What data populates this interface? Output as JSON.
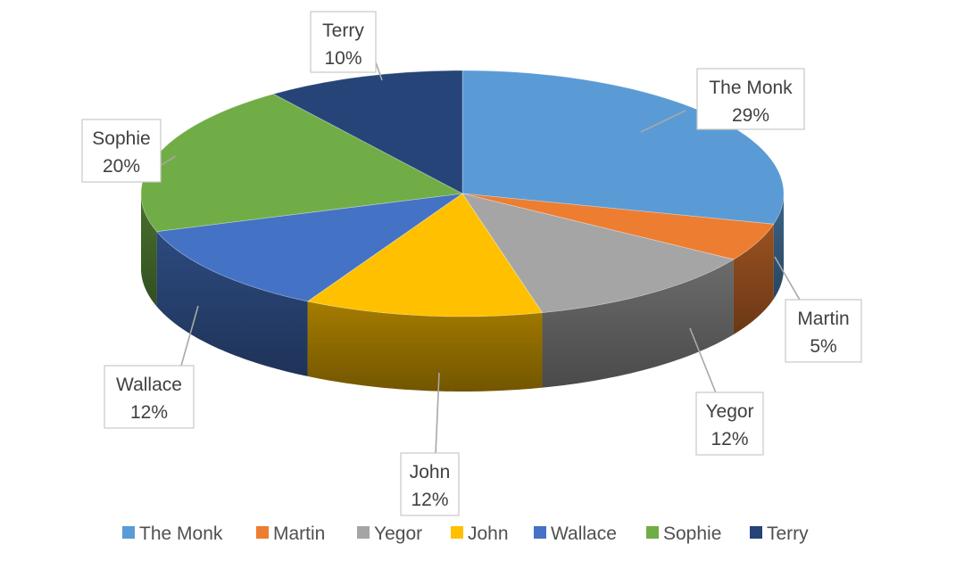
{
  "chart_data": {
    "type": "pie",
    "variant": "3d",
    "categories": [
      "The Monk",
      "Martin",
      "Yegor",
      "John",
      "Wallace",
      "Sophie",
      "Terry"
    ],
    "values": [
      29,
      5,
      12,
      12,
      12,
      20,
      10
    ],
    "data_labels": [
      {
        "name": "The Monk",
        "percent": "29%"
      },
      {
        "name": "Martin",
        "percent": "5%"
      },
      {
        "name": "Yegor",
        "percent": "12%"
      },
      {
        "name": "John",
        "percent": "12%"
      },
      {
        "name": "Wallace",
        "percent": "12%"
      },
      {
        "name": "Sophie",
        "percent": "20%"
      },
      {
        "name": "Terry",
        "percent": "10%"
      }
    ],
    "colors": [
      "#5b9bd5",
      "#ed7d31",
      "#a5a5a5",
      "#ffc000",
      "#4472c4",
      "#70ad47",
      "#264478"
    ],
    "legend": {
      "position": "bottom",
      "entries": [
        "The Monk",
        "Martin",
        "Yegor",
        "John",
        "Wallace",
        "Sophie",
        "Terry"
      ]
    }
  }
}
